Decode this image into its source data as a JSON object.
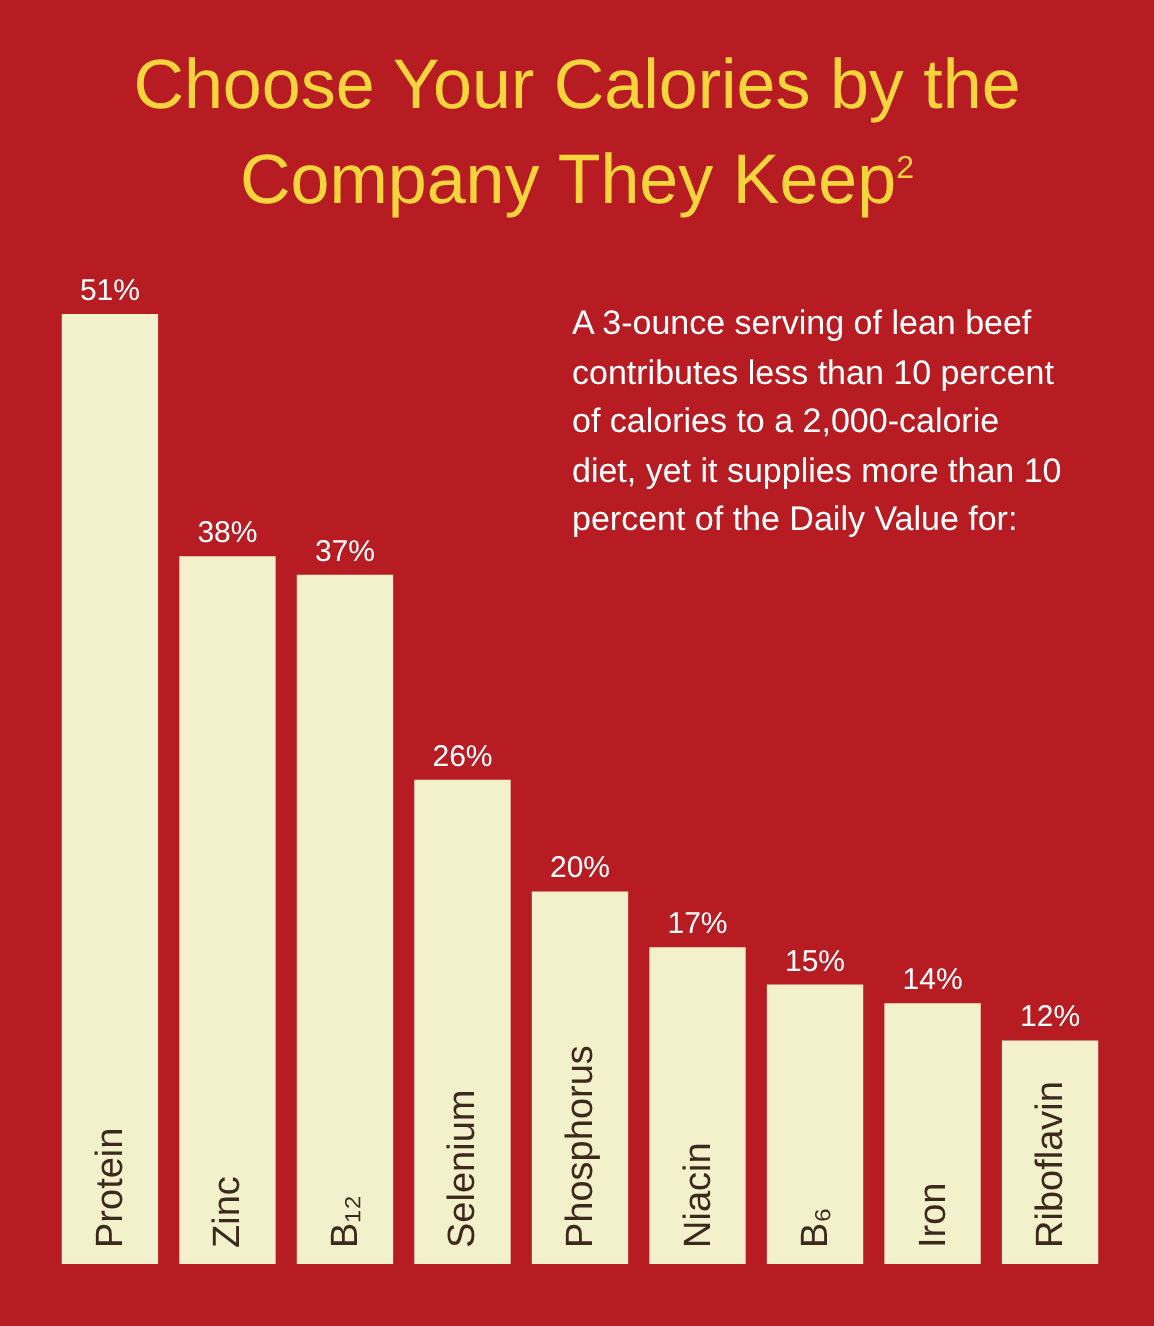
{
  "chart_data": {
    "type": "bar",
    "title": "Choose Your Calories by the Company They Keep$^{2}$",
    "categories": [
      "Protein",
      "Zinc",
      "B₁₂",
      "Selenium",
      "Phosphorus",
      "Niacin",
      "B₆",
      "Iron",
      "Riboflavin"
    ],
    "values": [
      51,
      38,
      37,
      26,
      20,
      17,
      15,
      14,
      12
    ],
    "value_labels": [
      "51%",
      "38%",
      "37%",
      "26%",
      "20%",
      "17%",
      "15%",
      "14%",
      "12%"
    ],
    "color": "#f3f0cc",
    "annotations": [
      "A 3-ounce serving of lean beef contributes less than 10 percent of calories to a 2,000-calorie diet, yet it supplies more than 10 percent of the Daily Value for:"
    ]
  }
}
